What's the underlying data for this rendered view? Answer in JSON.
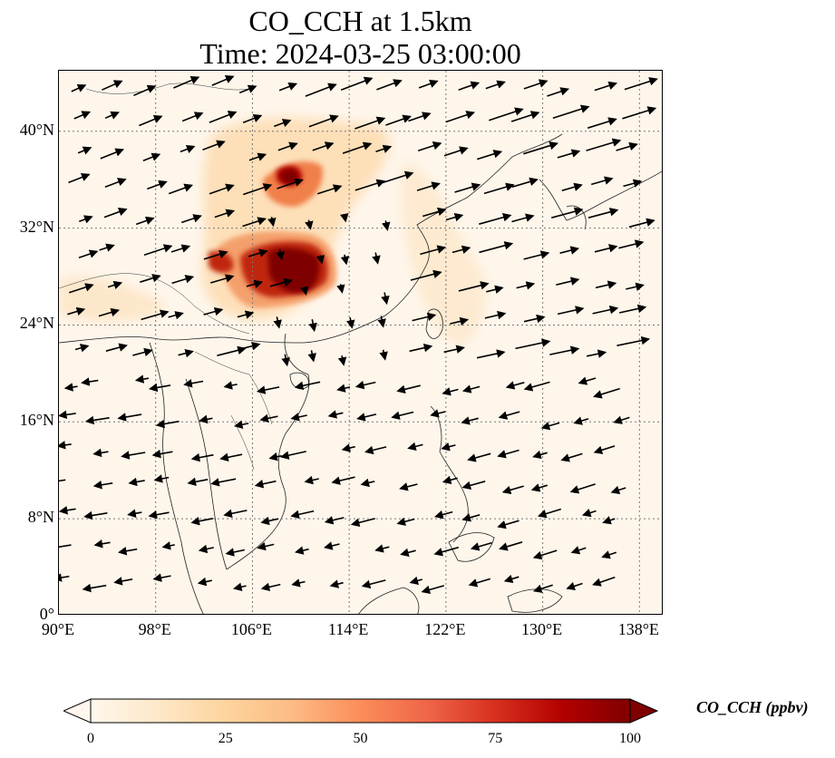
{
  "title": {
    "line1": "CO_CCH at 1.5km",
    "line2": "Time: 2024-03-25 03:00:00"
  },
  "map": {
    "extent": {
      "lon": [
        90,
        140
      ],
      "lat": [
        0,
        45
      ]
    },
    "lat_ticks": [
      {
        "value": 0,
        "label": "0°"
      },
      {
        "value": 8,
        "label": "8°N"
      },
      {
        "value": 16,
        "label": "16°N"
      },
      {
        "value": 24,
        "label": "24°N"
      },
      {
        "value": 32,
        "label": "32°N"
      },
      {
        "value": 40,
        "label": "40°N"
      }
    ],
    "lon_ticks": [
      {
        "value": 90,
        "label": "90°E"
      },
      {
        "value": 98,
        "label": "98°E"
      },
      {
        "value": 106,
        "label": "106°E"
      },
      {
        "value": 114,
        "label": "114°E"
      },
      {
        "value": 122,
        "label": "122°E"
      },
      {
        "value": 130,
        "label": "130°E"
      },
      {
        "value": 138,
        "label": "138°E"
      }
    ],
    "gridlines": true,
    "background_color": "#fef6eb",
    "plume_colors": {
      "low": "#fdd8a8",
      "mid": "#f0804a",
      "high": "#c0270f",
      "max": "#7f0000"
    }
  },
  "colorbar": {
    "label": "CO_CCH (ppbv)",
    "ticks": [
      "0",
      "25",
      "50",
      "75",
      "100"
    ],
    "range": [
      0,
      100
    ],
    "extend": "both",
    "colormap": "OrRd",
    "stops": [
      "#fff7ec",
      "#fee8c8",
      "#fdd49e",
      "#fdbb84",
      "#fc8d59",
      "#ef6548",
      "#d7301f",
      "#b30000",
      "#7f0000"
    ]
  }
}
